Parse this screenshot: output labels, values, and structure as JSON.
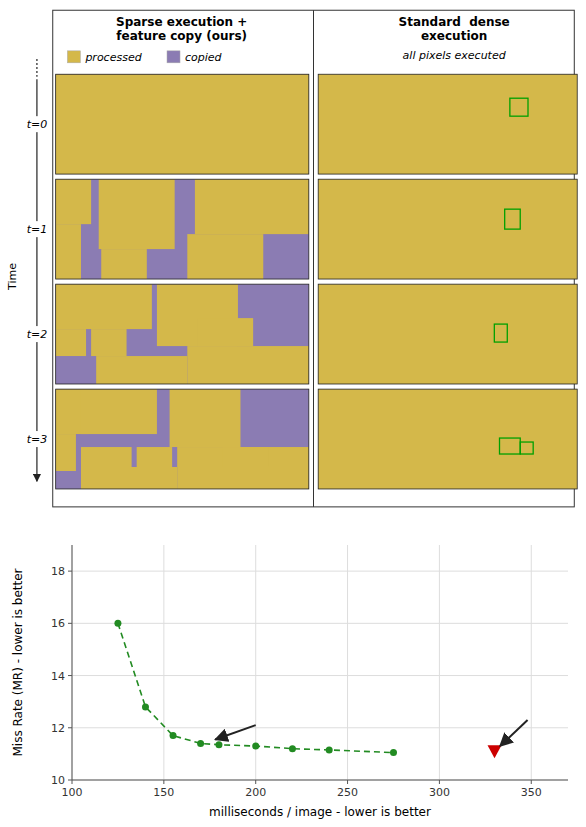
{
  "chart_data": {
    "type": "line",
    "xlabel": "milliseconds / image - lower is better",
    "ylabel": "Miss Rate (MR) - lower is better",
    "series": [
      {
        "x": [
          125,
          140,
          155,
          170,
          180,
          200,
          220,
          240,
          275
        ],
        "values": [
          16.0,
          12.8,
          11.7,
          11.4,
          11.35,
          11.3,
          11.2,
          11.15,
          11.05
        ],
        "color": "#228B22",
        "marker": "circle",
        "line_style": "dashed"
      },
      {
        "type": "scatter",
        "x": [
          330
        ],
        "values": [
          11.1
        ],
        "color": "#CC0000",
        "marker": "triangle-down"
      }
    ],
    "xlim": [
      100,
      370
    ],
    "ylim": [
      10,
      19
    ],
    "xticks": [
      100,
      150,
      200,
      250,
      300,
      350
    ],
    "yticks": [
      10,
      12,
      14,
      16,
      18
    ],
    "grid": true,
    "annotations": [
      {
        "x_from": 200,
        "y_from": 12.1,
        "x": 178,
        "y": 11.55
      },
      {
        "x_from": 348,
        "y_from": 12.3,
        "x": 333,
        "y": 11.3
      },
      {
        "text": "Sparse execution +\nfeature copy (ours)"
      },
      {
        "text": "Standard  dense\nexecution"
      },
      {
        "text": "all pixels executed"
      },
      {
        "text": "processed",
        "color": "#D4B84A"
      },
      {
        "text": "copied",
        "color": "#8B7CB3"
      },
      {
        "text": "Time"
      },
      {
        "text": "t=0"
      },
      {
        "text": "t=1"
      },
      {
        "text": "t=2"
      },
      {
        "text": "t=3"
      }
    ]
  }
}
